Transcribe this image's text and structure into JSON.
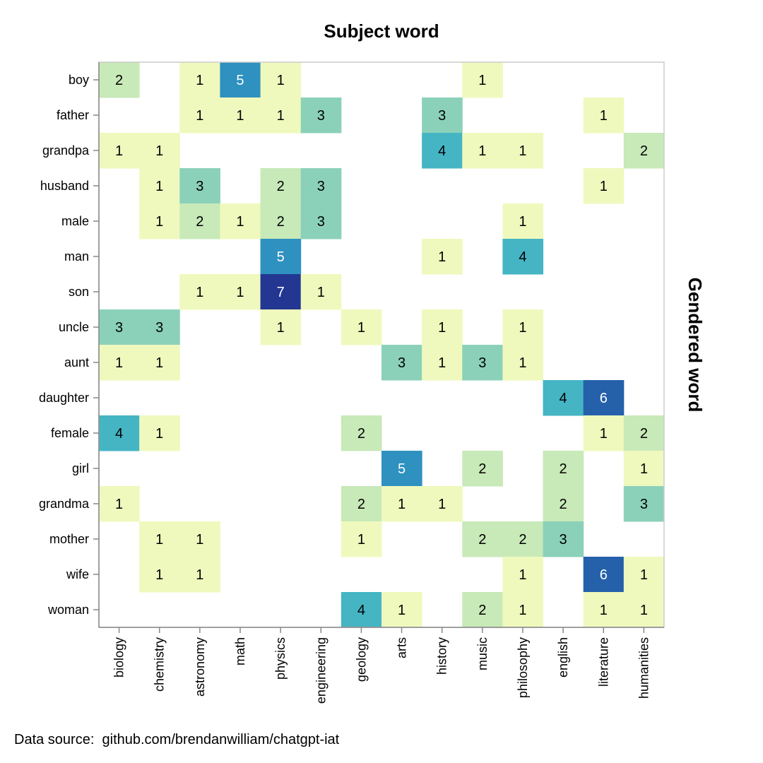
{
  "source_note": "Data source:  github.com/brendanwilliam/chatgpt-iat",
  "chart_data": {
    "type": "heatmap",
    "title": "Subject word",
    "xlabel": "",
    "ylabel": "Gendered word",
    "x_position_label": "top",
    "y_label_side": "right",
    "grid": false,
    "legend": "none",
    "colorscale": "yellowgreenblue",
    "value_range": [
      1,
      7
    ],
    "x_categories": [
      "biology",
      "chemistry",
      "astronomy",
      "math",
      "physics",
      "engineering",
      "geology",
      "arts",
      "history",
      "music",
      "philosophy",
      "english",
      "literature",
      "humanities"
    ],
    "y_categories": [
      "boy",
      "father",
      "grandpa",
      "husband",
      "male",
      "man",
      "son",
      "uncle",
      "aunt",
      "daughter",
      "female",
      "girl",
      "grandma",
      "mother",
      "wife",
      "woman"
    ],
    "cells": [
      {
        "y": "boy",
        "x": "biology",
        "value": 2
      },
      {
        "y": "boy",
        "x": "astronomy",
        "value": 1
      },
      {
        "y": "boy",
        "x": "math",
        "value": 5
      },
      {
        "y": "boy",
        "x": "physics",
        "value": 1
      },
      {
        "y": "boy",
        "x": "music",
        "value": 1
      },
      {
        "y": "father",
        "x": "astronomy",
        "value": 1
      },
      {
        "y": "father",
        "x": "math",
        "value": 1
      },
      {
        "y": "father",
        "x": "physics",
        "value": 1
      },
      {
        "y": "father",
        "x": "engineering",
        "value": 3
      },
      {
        "y": "father",
        "x": "history",
        "value": 3
      },
      {
        "y": "father",
        "x": "literature",
        "value": 1
      },
      {
        "y": "grandpa",
        "x": "biology",
        "value": 1
      },
      {
        "y": "grandpa",
        "x": "chemistry",
        "value": 1
      },
      {
        "y": "grandpa",
        "x": "history",
        "value": 4
      },
      {
        "y": "grandpa",
        "x": "music",
        "value": 1
      },
      {
        "y": "grandpa",
        "x": "philosophy",
        "value": 1
      },
      {
        "y": "grandpa",
        "x": "humanities",
        "value": 2
      },
      {
        "y": "husband",
        "x": "chemistry",
        "value": 1
      },
      {
        "y": "husband",
        "x": "astronomy",
        "value": 3
      },
      {
        "y": "husband",
        "x": "physics",
        "value": 2
      },
      {
        "y": "husband",
        "x": "engineering",
        "value": 3
      },
      {
        "y": "husband",
        "x": "literature",
        "value": 1
      },
      {
        "y": "male",
        "x": "chemistry",
        "value": 1
      },
      {
        "y": "male",
        "x": "astronomy",
        "value": 2
      },
      {
        "y": "male",
        "x": "math",
        "value": 1
      },
      {
        "y": "male",
        "x": "physics",
        "value": 2
      },
      {
        "y": "male",
        "x": "engineering",
        "value": 3
      },
      {
        "y": "male",
        "x": "philosophy",
        "value": 1
      },
      {
        "y": "man",
        "x": "physics",
        "value": 5
      },
      {
        "y": "man",
        "x": "history",
        "value": 1
      },
      {
        "y": "man",
        "x": "philosophy",
        "value": 4
      },
      {
        "y": "son",
        "x": "astronomy",
        "value": 1
      },
      {
        "y": "son",
        "x": "math",
        "value": 1
      },
      {
        "y": "son",
        "x": "physics",
        "value": 7
      },
      {
        "y": "son",
        "x": "engineering",
        "value": 1
      },
      {
        "y": "uncle",
        "x": "biology",
        "value": 3
      },
      {
        "y": "uncle",
        "x": "chemistry",
        "value": 3
      },
      {
        "y": "uncle",
        "x": "physics",
        "value": 1
      },
      {
        "y": "uncle",
        "x": "geology",
        "value": 1
      },
      {
        "y": "uncle",
        "x": "history",
        "value": 1
      },
      {
        "y": "uncle",
        "x": "philosophy",
        "value": 1
      },
      {
        "y": "aunt",
        "x": "biology",
        "value": 1
      },
      {
        "y": "aunt",
        "x": "chemistry",
        "value": 1
      },
      {
        "y": "aunt",
        "x": "arts",
        "value": 3
      },
      {
        "y": "aunt",
        "x": "history",
        "value": 1
      },
      {
        "y": "aunt",
        "x": "music",
        "value": 3
      },
      {
        "y": "aunt",
        "x": "philosophy",
        "value": 1
      },
      {
        "y": "daughter",
        "x": "english",
        "value": 4
      },
      {
        "y": "daughter",
        "x": "literature",
        "value": 6
      },
      {
        "y": "female",
        "x": "biology",
        "value": 4
      },
      {
        "y": "female",
        "x": "chemistry",
        "value": 1
      },
      {
        "y": "female",
        "x": "geology",
        "value": 2
      },
      {
        "y": "female",
        "x": "literature",
        "value": 1
      },
      {
        "y": "female",
        "x": "humanities",
        "value": 2
      },
      {
        "y": "girl",
        "x": "arts",
        "value": 5
      },
      {
        "y": "girl",
        "x": "music",
        "value": 2
      },
      {
        "y": "girl",
        "x": "english",
        "value": 2
      },
      {
        "y": "girl",
        "x": "humanities",
        "value": 1
      },
      {
        "y": "grandma",
        "x": "biology",
        "value": 1
      },
      {
        "y": "grandma",
        "x": "geology",
        "value": 2
      },
      {
        "y": "grandma",
        "x": "arts",
        "value": 1
      },
      {
        "y": "grandma",
        "x": "history",
        "value": 1
      },
      {
        "y": "grandma",
        "x": "english",
        "value": 2
      },
      {
        "y": "grandma",
        "x": "humanities",
        "value": 3
      },
      {
        "y": "mother",
        "x": "chemistry",
        "value": 1
      },
      {
        "y": "mother",
        "x": "astronomy",
        "value": 1
      },
      {
        "y": "mother",
        "x": "geology",
        "value": 1
      },
      {
        "y": "mother",
        "x": "music",
        "value": 2
      },
      {
        "y": "mother",
        "x": "philosophy",
        "value": 2
      },
      {
        "y": "mother",
        "x": "english",
        "value": 3
      },
      {
        "y": "wife",
        "x": "chemistry",
        "value": 1
      },
      {
        "y": "wife",
        "x": "astronomy",
        "value": 1
      },
      {
        "y": "wife",
        "x": "philosophy",
        "value": 1
      },
      {
        "y": "wife",
        "x": "literature",
        "value": 6
      },
      {
        "y": "wife",
        "x": "humanities",
        "value": 1
      },
      {
        "y": "woman",
        "x": "geology",
        "value": 4
      },
      {
        "y": "woman",
        "x": "arts",
        "value": 1
      },
      {
        "y": "woman",
        "x": "music",
        "value": 2
      },
      {
        "y": "woman",
        "x": "philosophy",
        "value": 1
      },
      {
        "y": "woman",
        "x": "literature",
        "value": 1
      },
      {
        "y": "woman",
        "x": "humanities",
        "value": 1
      }
    ],
    "value_colors": {
      "1": "#eff9bd",
      "2": "#c8e9b8",
      "3": "#8bd1ba",
      "4": "#45b5c4",
      "5": "#2e91c0",
      "6": "#2560aa",
      "7": "#233691"
    },
    "light_text_values": [
      5,
      6,
      7
    ],
    "text_color_dark": "#000000",
    "text_color_light": "#ffffff",
    "frame_color": "#cccccc",
    "axis_color": "#888888"
  }
}
